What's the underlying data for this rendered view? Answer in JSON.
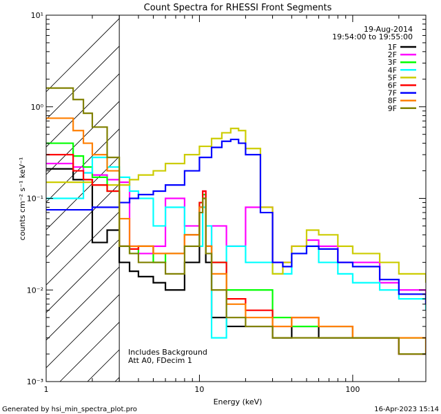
{
  "chart_data": {
    "type": "line",
    "title": "Count Spectra for RHESSI Front Segments",
    "xlabel": "Energy (keV)",
    "ylabel": "counts cm⁻² s⁻¹ keV⁻¹",
    "xscale": "log",
    "yscale": "log",
    "xlim": [
      1,
      300
    ],
    "ylim": [
      0.001,
      10
    ],
    "x_ticks": [
      {
        "value": 1,
        "label": "1"
      },
      {
        "value": 10,
        "label": "10"
      },
      {
        "value": 100,
        "label": "100"
      }
    ],
    "y_ticks": [
      {
        "value": 0.001,
        "label": "10⁻³"
      },
      {
        "value": 0.01,
        "label": "10⁻²"
      },
      {
        "value": 0.1,
        "label": "10⁻¹"
      },
      {
        "value": 1,
        "label": "10⁰"
      },
      {
        "value": 10,
        "label": "10¹"
      }
    ],
    "date": "19-Aug-2014",
    "time_range": "19:54:00 to 19:55:00",
    "excluded_region": {
      "from": 1,
      "to": 3,
      "style": "hatched"
    },
    "annotations": [
      "Includes Background",
      "Att A0, FDecim 1"
    ],
    "footer_left": "Generated by hsi_min_spectra_plot.pro",
    "footer_right": "16-Apr-2023 15:14",
    "series": [
      {
        "name": "1F",
        "color": "#000000",
        "x": [
          1.25,
          1.5,
          1.75,
          2.0,
          2.5,
          3.0,
          3.5,
          4,
          5,
          6,
          8,
          10,
          10.5,
          11,
          12,
          15,
          20,
          30,
          40,
          60,
          100,
          200,
          300
        ],
        "y": [
          0.21,
          0.16,
          0.16,
          0.033,
          0.045,
          0.02,
          0.016,
          0.014,
          0.012,
          0.01,
          0.02,
          0.08,
          0.1,
          0.02,
          0.005,
          0.004,
          0.004,
          0.003,
          0.004,
          0.003,
          0.003,
          0.002,
          0.002
        ]
      },
      {
        "name": "2F",
        "color": "#ff00ff",
        "x": [
          1.25,
          1.5,
          1.75,
          2.0,
          2.5,
          3.0,
          3.5,
          4,
          5,
          6,
          8,
          10,
          10.5,
          11,
          12,
          15,
          20,
          30,
          40,
          50,
          60,
          80,
          100,
          150,
          200,
          300
        ],
        "y": [
          0.24,
          0.22,
          0.19,
          0.18,
          0.16,
          0.15,
          0.03,
          0.025,
          0.03,
          0.1,
          0.05,
          0.08,
          0.12,
          0.03,
          0.05,
          0.03,
          0.08,
          0.02,
          0.03,
          0.035,
          0.03,
          0.02,
          0.02,
          0.012,
          0.01,
          0.007
        ]
      },
      {
        "name": "3F",
        "color": "#00ff00",
        "x": [
          1.25,
          1.5,
          1.75,
          2.0,
          2.5,
          3.0,
          3.5,
          4,
          5,
          6,
          8,
          10,
          10.5,
          11,
          12,
          15,
          20,
          30,
          40,
          60,
          100,
          200,
          300
        ],
        "y": [
          0.4,
          0.29,
          0.22,
          0.17,
          0.12,
          0.03,
          0.025,
          0.03,
          0.02,
          0.025,
          0.04,
          0.09,
          0.11,
          0.03,
          0.02,
          0.01,
          0.01,
          0.005,
          0.004,
          0.004,
          0.003,
          0.003,
          0.002
        ]
      },
      {
        "name": "4F",
        "color": "#00ffff",
        "x": [
          1.25,
          1.5,
          1.75,
          2.0,
          2.5,
          3.0,
          3.5,
          4,
          5,
          6,
          8,
          10,
          10.5,
          11,
          12,
          15,
          20,
          30,
          40,
          50,
          60,
          80,
          100,
          150,
          200,
          300
        ],
        "y": [
          0.1,
          0.1,
          0.19,
          0.28,
          0.22,
          0.17,
          0.12,
          0.1,
          0.05,
          0.08,
          0.04,
          0.03,
          0.08,
          0.05,
          0.003,
          0.03,
          0.02,
          0.015,
          0.025,
          0.03,
          0.02,
          0.015,
          0.012,
          0.01,
          0.008,
          0.006
        ]
      },
      {
        "name": "5F",
        "color": "#cccc00",
        "x": [
          1.25,
          2.0,
          3.0,
          3.5,
          4,
          5,
          6,
          8,
          10,
          12,
          14,
          16,
          18,
          20,
          25,
          30,
          35,
          40,
          50,
          60,
          80,
          100,
          150,
          200,
          300
        ],
        "y": [
          0.15,
          0.14,
          0.14,
          0.16,
          0.18,
          0.2,
          0.24,
          0.3,
          0.37,
          0.45,
          0.52,
          0.58,
          0.55,
          0.35,
          0.08,
          0.015,
          0.02,
          0.03,
          0.045,
          0.04,
          0.03,
          0.025,
          0.02,
          0.015,
          0.012
        ]
      },
      {
        "name": "6F",
        "color": "#ff0000",
        "x": [
          1.25,
          1.5,
          1.75,
          2.0,
          2.5,
          3.0,
          3.5,
          4,
          5,
          6,
          8,
          10,
          10.5,
          11,
          12,
          15,
          20,
          30,
          40,
          60,
          100,
          200,
          300
        ],
        "y": [
          0.3,
          0.2,
          0.16,
          0.14,
          0.12,
          0.03,
          0.028,
          0.03,
          0.025,
          0.025,
          0.04,
          0.09,
          0.12,
          0.03,
          0.02,
          0.008,
          0.006,
          0.004,
          0.005,
          0.004,
          0.003,
          0.002,
          0.002
        ]
      },
      {
        "name": "7F",
        "color": "#0000ff",
        "x": [
          1.25,
          2.0,
          3.0,
          3.5,
          4,
          5,
          6,
          8,
          10,
          12,
          14,
          16,
          18,
          20,
          25,
          30,
          35,
          40,
          50,
          60,
          80,
          100,
          150,
          200,
          300
        ],
        "y": [
          0.075,
          0.08,
          0.09,
          0.1,
          0.11,
          0.12,
          0.14,
          0.2,
          0.28,
          0.36,
          0.42,
          0.44,
          0.4,
          0.3,
          0.07,
          0.02,
          0.018,
          0.025,
          0.03,
          0.028,
          0.02,
          0.018,
          0.013,
          0.009,
          0.007
        ]
      },
      {
        "name": "8F",
        "color": "#ff7f00",
        "x": [
          1.25,
          1.5,
          1.75,
          2.0,
          2.5,
          3.0,
          3.5,
          4,
          5,
          6,
          8,
          10,
          10.5,
          11,
          12,
          15,
          20,
          30,
          40,
          60,
          100,
          200,
          300
        ],
        "y": [
          0.75,
          0.55,
          0.4,
          0.3,
          0.2,
          0.06,
          0.03,
          0.03,
          0.025,
          0.025,
          0.04,
          0.08,
          0.1,
          0.03,
          0.015,
          0.007,
          0.005,
          0.004,
          0.005,
          0.004,
          0.003,
          0.003,
          0.002
        ]
      },
      {
        "name": "9F",
        "color": "#808000",
        "x": [
          1.25,
          1.5,
          1.75,
          2.0,
          2.5,
          3.0,
          3.5,
          4,
          5,
          6,
          8,
          10,
          10.5,
          11,
          12,
          15,
          20,
          30,
          40,
          60,
          100,
          200,
          300
        ],
        "y": [
          1.6,
          1.2,
          0.85,
          0.6,
          0.28,
          0.03,
          0.025,
          0.02,
          0.02,
          0.015,
          0.03,
          0.07,
          0.1,
          0.025,
          0.01,
          0.005,
          0.004,
          0.003,
          0.003,
          0.003,
          0.003,
          0.002,
          0.002
        ]
      }
    ]
  }
}
